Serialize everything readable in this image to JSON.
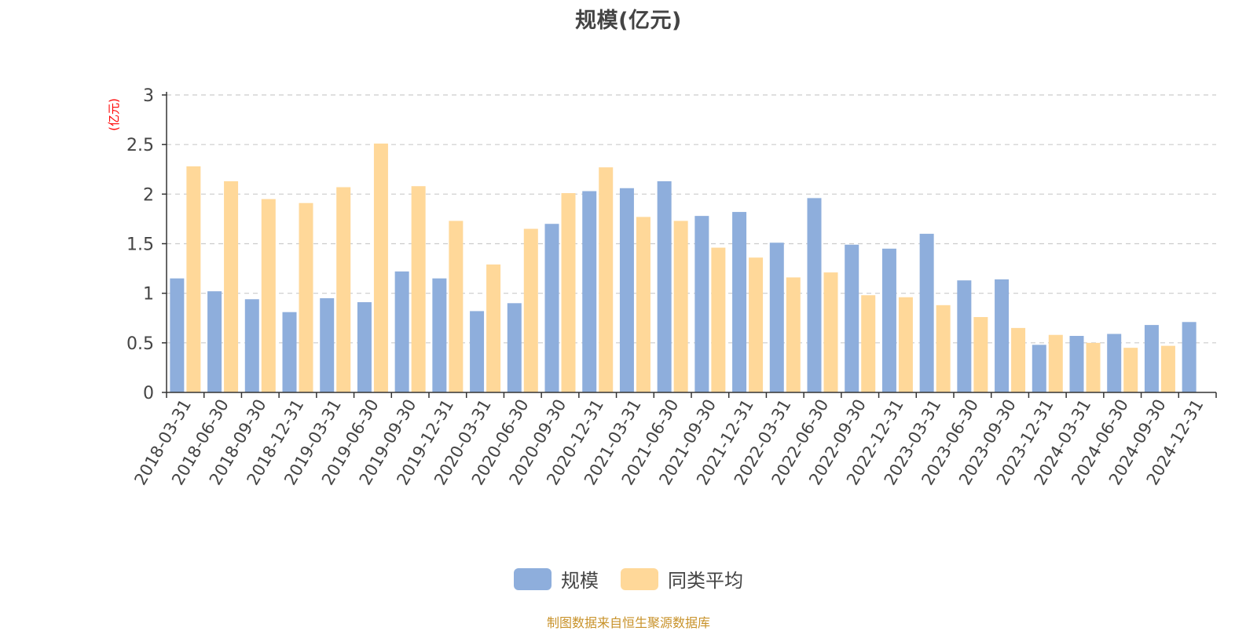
{
  "chart_data": {
    "type": "bar",
    "title": "规模(亿元)",
    "ylabel": "(亿元)",
    "xlabel": "",
    "ylim": [
      0,
      3
    ],
    "yticks": [
      "0",
      "0.5",
      "1",
      "1.5",
      "2",
      "2.5",
      "3"
    ],
    "grid": true,
    "legend_position": "bottom-center",
    "categories": [
      "2018-03-31",
      "2018-06-30",
      "2018-09-30",
      "2018-12-31",
      "2019-03-31",
      "2019-06-30",
      "2019-09-30",
      "2019-12-31",
      "2020-03-31",
      "2020-06-30",
      "2020-09-30",
      "2020-12-31",
      "2021-03-31",
      "2021-06-30",
      "2021-09-30",
      "2021-12-31",
      "2022-03-31",
      "2022-06-30",
      "2022-09-30",
      "2022-12-31",
      "2023-03-31",
      "2023-06-30",
      "2023-09-30",
      "2023-12-31",
      "2024-03-31",
      "2024-06-30",
      "2024-09-30",
      "2024-12-31"
    ],
    "series": [
      {
        "name": "规模",
        "color": "#8eaedc",
        "values": [
          1.15,
          1.02,
          0.94,
          0.81,
          0.95,
          0.91,
          1.22,
          1.15,
          0.82,
          0.9,
          1.7,
          2.03,
          2.06,
          2.13,
          1.78,
          1.82,
          1.51,
          1.96,
          1.49,
          1.45,
          1.6,
          1.13,
          1.14,
          0.48,
          0.57,
          0.59,
          0.68,
          0.71
        ]
      },
      {
        "name": "同类平均",
        "color": "#ffd899",
        "values": [
          2.28,
          2.13,
          1.95,
          1.91,
          2.07,
          2.51,
          2.08,
          1.73,
          1.29,
          1.65,
          2.01,
          2.27,
          1.77,
          1.73,
          1.46,
          1.36,
          1.16,
          1.21,
          0.98,
          0.96,
          0.88,
          0.76,
          0.65,
          0.58,
          0.5,
          0.45,
          0.47,
          null
        ]
      }
    ]
  },
  "source_note": "制图数据来自恒生聚源数据库",
  "colors": {
    "axis": "#333333",
    "grid": "#cccccc",
    "ylabel": "#ff0000",
    "tick_text": "#444444",
    "source_note": "#c8922a"
  }
}
